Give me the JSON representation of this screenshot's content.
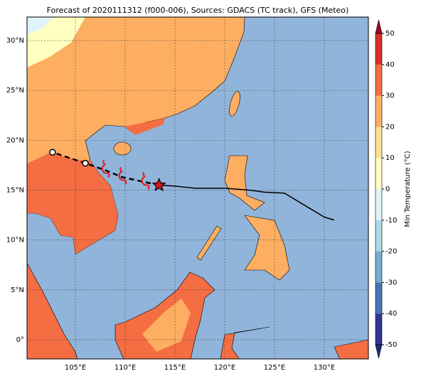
{
  "title": "Forecast of 2020111312 (f000-006), Sources: GDACS (TC track), GFS (Meteo)",
  "map": {
    "lonlim": [
      100.14,
      134.43
    ],
    "latlim": [
      -1.93,
      32.36
    ],
    "lon_ticks": [
      {
        "value": 105,
        "label": "105°E"
      },
      {
        "value": 110,
        "label": "110°E"
      },
      {
        "value": 115,
        "label": "115°E"
      },
      {
        "value": 120,
        "label": "120°E"
      },
      {
        "value": 125,
        "label": "125°E"
      },
      {
        "value": 130,
        "label": "130°E"
      }
    ],
    "lat_ticks": [
      {
        "value": 0,
        "label": "0°"
      },
      {
        "value": 5,
        "label": "5°N"
      },
      {
        "value": 10,
        "label": "10°N"
      },
      {
        "value": 15,
        "label": "15°N"
      },
      {
        "value": 20,
        "label": "20°N"
      },
      {
        "value": 25,
        "label": "25°N"
      },
      {
        "value": 30,
        "label": "30°N"
      }
    ],
    "grid": true
  },
  "track": {
    "lon": [
      131,
      130,
      128,
      126,
      124,
      122.5,
      120,
      117,
      115,
      113.4
    ],
    "lat": [
      12,
      12.3,
      13.5,
      14.7,
      14.8,
      15,
      15.2,
      15.2,
      15.4,
      15.5
    ]
  },
  "forecast": {
    "lon": [
      113.4,
      112,
      109.7,
      108,
      106,
      102.7
    ],
    "lat": [
      15.5,
      15.8,
      16.3,
      17,
      17.7,
      18.8
    ]
  },
  "colorbar": {
    "label": "Min Temperature (°C)",
    "range": [
      -50,
      50
    ],
    "ticks": [
      -50,
      -40,
      -30,
      -20,
      -10,
      0,
      10,
      20,
      30,
      40,
      50
    ],
    "colors": [
      "#313695",
      "#4575b4",
      "#74add1",
      "#abd9e9",
      "#e0f3f8",
      "#ffffbf",
      "#fee090",
      "#fdae61",
      "#f46d43",
      "#d73027"
    ],
    "under": "#1f2a80",
    "over": "#a50026"
  }
}
